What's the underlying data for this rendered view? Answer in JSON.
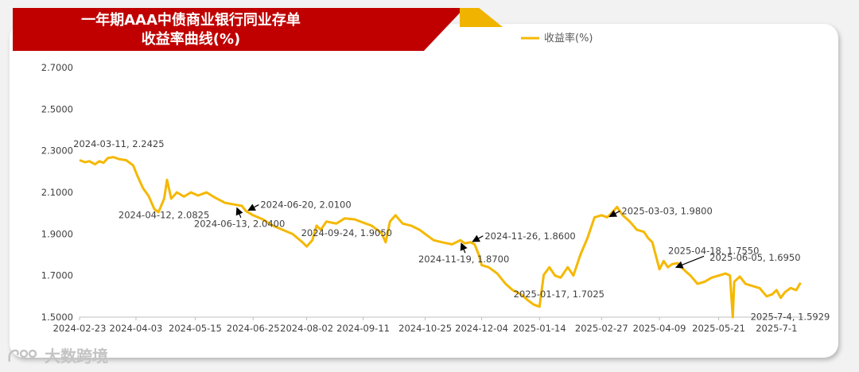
{
  "chart_data": {
    "type": "line",
    "title_line1": "一年期AAA中债商业银行同业存单",
    "title_line2": "收益率曲线(%)",
    "series": [
      {
        "name": "收益率(%)",
        "color": "#f5b800",
        "points": [
          [
            "2024-02-23",
            2.255
          ],
          [
            "2024-02-27",
            2.245
          ],
          [
            "2024-03-01",
            2.25
          ],
          [
            "2024-03-05",
            2.235
          ],
          [
            "2024-03-08",
            2.25
          ],
          [
            "2024-03-11",
            2.2425
          ],
          [
            "2024-03-14",
            2.265
          ],
          [
            "2024-03-18",
            2.27
          ],
          [
            "2024-03-22",
            2.26
          ],
          [
            "2024-03-27",
            2.255
          ],
          [
            "2024-04-01",
            2.23
          ],
          [
            "2024-04-04",
            2.18
          ],
          [
            "2024-04-08",
            2.12
          ],
          [
            "2024-04-12",
            2.0825
          ],
          [
            "2024-04-16",
            2.02
          ],
          [
            "2024-04-19",
            2.005
          ],
          [
            "2024-04-23",
            2.07
          ],
          [
            "2024-04-25",
            2.16
          ],
          [
            "2024-04-28",
            2.07
          ],
          [
            "2024-05-02",
            2.1
          ],
          [
            "2024-05-07",
            2.08
          ],
          [
            "2024-05-12",
            2.1
          ],
          [
            "2024-05-17",
            2.085
          ],
          [
            "2024-05-23",
            2.1
          ],
          [
            "2024-05-29",
            2.075
          ],
          [
            "2024-06-05",
            2.05
          ],
          [
            "2024-06-13",
            2.04
          ],
          [
            "2024-06-17",
            2.035
          ],
          [
            "2024-06-20",
            2.01
          ],
          [
            "2024-06-25",
            1.99
          ],
          [
            "2024-07-02",
            1.97
          ],
          [
            "2024-07-09",
            1.94
          ],
          [
            "2024-07-16",
            1.92
          ],
          [
            "2024-07-23",
            1.9
          ],
          [
            "2024-07-30",
            1.86
          ],
          [
            "2024-08-02",
            1.84
          ],
          [
            "2024-08-06",
            1.87
          ],
          [
            "2024-08-09",
            1.94
          ],
          [
            "2024-08-12",
            1.92
          ],
          [
            "2024-08-16",
            1.96
          ],
          [
            "2024-08-23",
            1.95
          ],
          [
            "2024-08-29",
            1.975
          ],
          [
            "2024-09-05",
            1.97
          ],
          [
            "2024-09-11",
            1.955
          ],
          [
            "2024-09-17",
            1.94
          ],
          [
            "2024-09-24",
            1.905
          ],
          [
            "2024-09-27",
            1.86
          ],
          [
            "2024-09-30",
            1.96
          ],
          [
            "2024-10-04",
            1.99
          ],
          [
            "2024-10-09",
            1.95
          ],
          [
            "2024-10-15",
            1.94
          ],
          [
            "2024-10-21",
            1.92
          ],
          [
            "2024-10-25",
            1.9
          ],
          [
            "2024-10-31",
            1.87
          ],
          [
            "2024-11-06",
            1.86
          ],
          [
            "2024-11-13",
            1.85
          ],
          [
            "2024-11-19",
            1.87
          ],
          [
            "2024-11-22",
            1.855
          ],
          [
            "2024-11-26",
            1.86
          ],
          [
            "2024-11-29",
            1.85
          ],
          [
            "2024-12-02",
            1.8
          ],
          [
            "2024-12-04",
            1.75
          ],
          [
            "2024-12-09",
            1.74
          ],
          [
            "2024-12-15",
            1.71
          ],
          [
            "2024-12-21",
            1.66
          ],
          [
            "2024-12-26",
            1.63
          ],
          [
            "2025-01-01",
            1.61
          ],
          [
            "2025-01-06",
            1.58
          ],
          [
            "2025-01-10",
            1.56
          ],
          [
            "2025-01-14",
            1.55
          ],
          [
            "2025-01-17",
            1.7025
          ],
          [
            "2025-01-21",
            1.74
          ],
          [
            "2025-01-25",
            1.7
          ],
          [
            "2025-01-29",
            1.69
          ],
          [
            "2025-02-03",
            1.74
          ],
          [
            "2025-02-07",
            1.7
          ],
          [
            "2025-02-12",
            1.8
          ],
          [
            "2025-02-17",
            1.88
          ],
          [
            "2025-02-22",
            1.98
          ],
          [
            "2025-02-27",
            1.99
          ],
          [
            "2025-03-03",
            1.98
          ],
          [
            "2025-03-06",
            2.0
          ],
          [
            "2025-03-10",
            2.03
          ],
          [
            "2025-03-14",
            1.99
          ],
          [
            "2025-03-19",
            1.96
          ],
          [
            "2025-03-24",
            1.92
          ],
          [
            "2025-03-29",
            1.91
          ],
          [
            "2025-04-01",
            1.88
          ],
          [
            "2025-04-04",
            1.86
          ],
          [
            "2025-04-09",
            1.73
          ],
          [
            "2025-04-12",
            1.77
          ],
          [
            "2025-04-15",
            1.74
          ],
          [
            "2025-04-18",
            1.755
          ],
          [
            "2025-04-22",
            1.76
          ],
          [
            "2025-04-26",
            1.73
          ],
          [
            "2025-05-01",
            1.7
          ],
          [
            "2025-05-06",
            1.66
          ],
          [
            "2025-05-11",
            1.67
          ],
          [
            "2025-05-16",
            1.69
          ],
          [
            "2025-05-21",
            1.7
          ],
          [
            "2025-05-26",
            1.71
          ],
          [
            "2025-05-29",
            1.7
          ],
          [
            "2025-05-31",
            1.5
          ],
          [
            "2025-06-01",
            1.67
          ],
          [
            "2025-06-05",
            1.695
          ],
          [
            "2025-06-09",
            1.66
          ],
          [
            "2025-06-14",
            1.65
          ],
          [
            "2025-06-19",
            1.64
          ],
          [
            "2025-06-24",
            1.6
          ],
          [
            "2025-06-28",
            1.61
          ],
          [
            "2025-07-01",
            1.63
          ],
          [
            "2025-07-04",
            1.5929
          ],
          [
            "2025-07-07",
            1.62
          ],
          [
            "2025-07-11",
            1.64
          ],
          [
            "2025-07-15",
            1.63
          ],
          [
            "2025-07-18",
            1.665
          ]
        ]
      }
    ],
    "xlim": [
      "2024-02-23",
      "2025-07-20"
    ],
    "ylim": [
      1.5,
      2.75
    ],
    "y_ticks": [
      "1.5000",
      "1.7000",
      "1.9000",
      "2.1000",
      "2.3000",
      "2.5000",
      "2.7000"
    ],
    "x_ticks": [
      "2024-02-23",
      "2024-04-03",
      "2024-05-15",
      "2024-06-25",
      "2024-08-02",
      "2024-09-11",
      "2024-10-25",
      "2024-12-04",
      "2025-01-14",
      "2025-02-27",
      "2025-04-09",
      "2025-05-21",
      "2025-7-1"
    ],
    "grid": false,
    "legend_placement": "top-right",
    "annotations": [
      {
        "text": "2024-03-11, 2.2425",
        "date": "2024-03-11",
        "value": 2.2425,
        "side": "above"
      },
      {
        "text": "2024-04-12, 2.0825",
        "date": "2024-04-12",
        "value": 2.0825,
        "side": "below"
      },
      {
        "text": "2024-06-13, 2.0400",
        "date": "2024-06-13",
        "value": 2.04,
        "side": "arrow-below"
      },
      {
        "text": "2024-06-20, 2.0100",
        "date": "2024-06-20",
        "value": 2.01,
        "side": "arrow-right-up"
      },
      {
        "text": "2024-09-24, 1.9050",
        "date": "2024-09-24",
        "value": 1.905,
        "side": "left"
      },
      {
        "text": "2024-11-26, 1.8600",
        "date": "2024-11-26",
        "value": 1.86,
        "side": "arrow-right-up"
      },
      {
        "text": "2024-11-19, 1.8700",
        "date": "2024-11-19",
        "value": 1.87,
        "side": "arrow-below"
      },
      {
        "text": "2025-01-17, 1.7025",
        "date": "2025-01-17",
        "value": 1.7025,
        "side": "below"
      },
      {
        "text": "2025-03-03, 1.9800",
        "date": "2025-03-03",
        "value": 1.98,
        "side": "arrow-right-up"
      },
      {
        "text": "2025-04-18, 1.7550",
        "date": "2025-04-18",
        "value": 1.755,
        "side": "arrow-up"
      },
      {
        "text": "2025-06-05, 1.6950",
        "date": "2025-06-05",
        "value": 1.695,
        "side": "above"
      },
      {
        "text": "2025-7-4, 1.5929",
        "date": "2025-07-04",
        "value": 1.5929,
        "side": "below"
      }
    ]
  },
  "watermark": {
    "text": "大数跨境"
  },
  "colors": {
    "banner": "#c00000",
    "banner_accent": "#f0b400",
    "line": "#f5b800",
    "axis": "#bfbfbf",
    "text": "#404040"
  }
}
